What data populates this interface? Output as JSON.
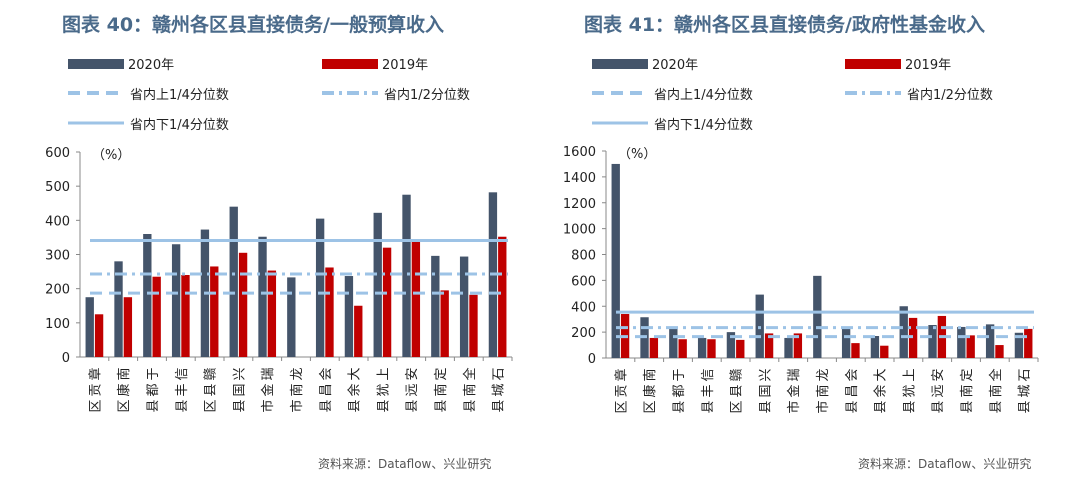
{
  "chart_data": [
    {
      "type": "bar",
      "title": "图表 40：赣州各区县直接债务/一般预算收入",
      "unit_label": "（%）",
      "categories": [
        "章贡区",
        "南康区",
        "于都县",
        "信丰县",
        "赣县区",
        "兴国县",
        "瑞金市",
        "龙南市",
        "会昌县",
        "大余县",
        "上犹县",
        "安远县",
        "定南县",
        "全南县",
        "石城县"
      ],
      "series": [
        {
          "name": "2020年",
          "color": "#44546a",
          "values": [
            175,
            280,
            360,
            330,
            373,
            440,
            352,
            233,
            405,
            237,
            422,
            475,
            296,
            294,
            482
          ]
        },
        {
          "name": "2019年",
          "color": "#c00000",
          "values": [
            125,
            175,
            235,
            240,
            265,
            305,
            253,
            0,
            262,
            150,
            320,
            337,
            195,
            182,
            352
          ]
        }
      ],
      "reference_lines": [
        {
          "name": "省内上1/4分位数",
          "value": 187,
          "style": "dashed",
          "color": "#9dc3e6"
        },
        {
          "name": "省内1/2分位数",
          "value": 243,
          "style": "dashdot",
          "color": "#9dc3e6"
        },
        {
          "name": "省内下1/4分位数",
          "value": 341,
          "style": "solid",
          "color": "#9dc3e6"
        }
      ],
      "ylim": [
        0,
        600
      ],
      "yticks": [
        "0",
        "100",
        "200",
        "300",
        "400",
        "500",
        "600"
      ],
      "source": "资料来源：Dataflow、兴业研究"
    },
    {
      "type": "bar",
      "title": "图表 41：赣州各区县直接债务/政府性基金收入",
      "unit_label": "（%）",
      "categories": [
        "章贡区",
        "南康区",
        "于都县",
        "信丰县",
        "赣县区",
        "兴国县",
        "瑞金市",
        "龙南市",
        "会昌县",
        "大余县",
        "上犹县",
        "安远县",
        "定南县",
        "全南县",
        "石城县"
      ],
      "series": [
        {
          "name": "2020年",
          "color": "#44546a",
          "values": [
            1500,
            315,
            225,
            155,
            200,
            490,
            155,
            635,
            230,
            170,
            400,
            255,
            240,
            260,
            195
          ]
        },
        {
          "name": "2019年",
          "color": "#c00000",
          "values": [
            340,
            155,
            145,
            145,
            140,
            190,
            190,
            0,
            115,
            95,
            310,
            325,
            175,
            100,
            225
          ]
        }
      ],
      "reference_lines": [
        {
          "name": "省内上1/4分位数",
          "value": 165,
          "style": "dashed",
          "color": "#9dc3e6"
        },
        {
          "name": "省内1/2分位数",
          "value": 235,
          "style": "dashdot",
          "color": "#9dc3e6"
        },
        {
          "name": "省内下1/4分位数",
          "value": 355,
          "style": "solid",
          "color": "#9dc3e6"
        }
      ],
      "ylim": [
        0,
        1600
      ],
      "yticks": [
        "0",
        "200",
        "400",
        "600",
        "800",
        "1000",
        "1200",
        "1400",
        "1600"
      ],
      "source": "资料来源：Dataflow、兴业研究"
    }
  ]
}
